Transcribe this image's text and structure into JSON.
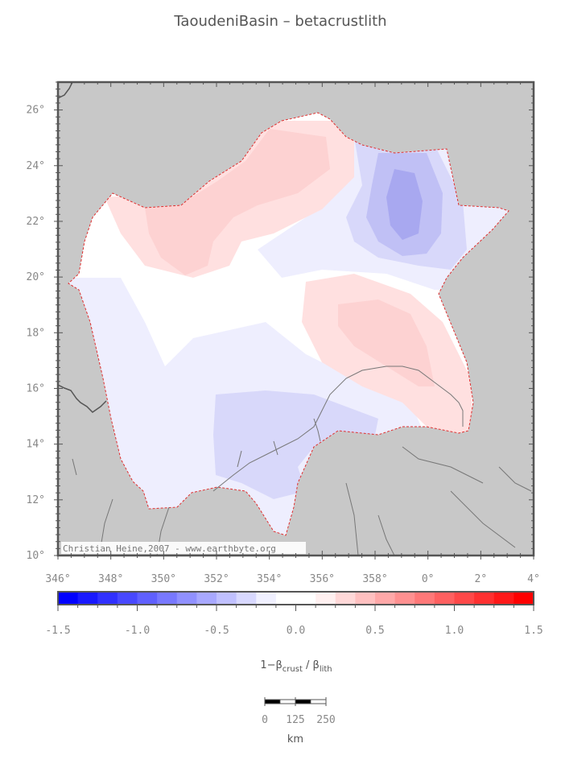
{
  "title": "TaoudeniBasin – betacrustlith",
  "map": {
    "lon_ticks": [
      "346°",
      "348°",
      "350°",
      "352°",
      "354°",
      "356°",
      "358°",
      "0°",
      "2°",
      "4°"
    ],
    "lat_ticks": [
      "26°",
      "24°",
      "22°",
      "20°",
      "18°",
      "16°",
      "14°",
      "12°",
      "10°"
    ],
    "credit": "Christian Heine,2007 - www.earthbyte.org",
    "colors": {
      "land": "#c8c8c8",
      "white": "#ffffff",
      "neutral_light_blue": "#eeeefe",
      "light_red": "#ffe0e0",
      "medium_red": "#fdd2d2",
      "light_blue": "#d8d8fa",
      "medium_blue": "#c0c0f5",
      "deep_blue": "#a8a8f0",
      "boundary": "#e03030",
      "coast": "#555555"
    }
  },
  "colorbar": {
    "ticks": [
      "-1.5",
      "-1.0",
      "-0.5",
      "0.0",
      "0.5",
      "1.0",
      "1.5"
    ],
    "colors": [
      "#0000ff",
      "#1818ff",
      "#3030ff",
      "#4848ff",
      "#6060ff",
      "#7878ff",
      "#9090ff",
      "#a8a8ff",
      "#c0c0ff",
      "#d8d8ff",
      "#f0f0ff",
      "#ffffff",
      "#ffffff",
      "#fff0f0",
      "#ffd8d8",
      "#ffc0c0",
      "#ffa8a8",
      "#ff9090",
      "#ff7878",
      "#ff6060",
      "#ff4848",
      "#ff3030",
      "#ff1818",
      "#ff0000"
    ],
    "label_main": "1−β",
    "label_sub1": "crust",
    "label_mid": " / β",
    "label_sub2": "lith"
  },
  "scalebar": {
    "ticks": [
      "0",
      "125",
      "250"
    ],
    "unit": "km"
  }
}
